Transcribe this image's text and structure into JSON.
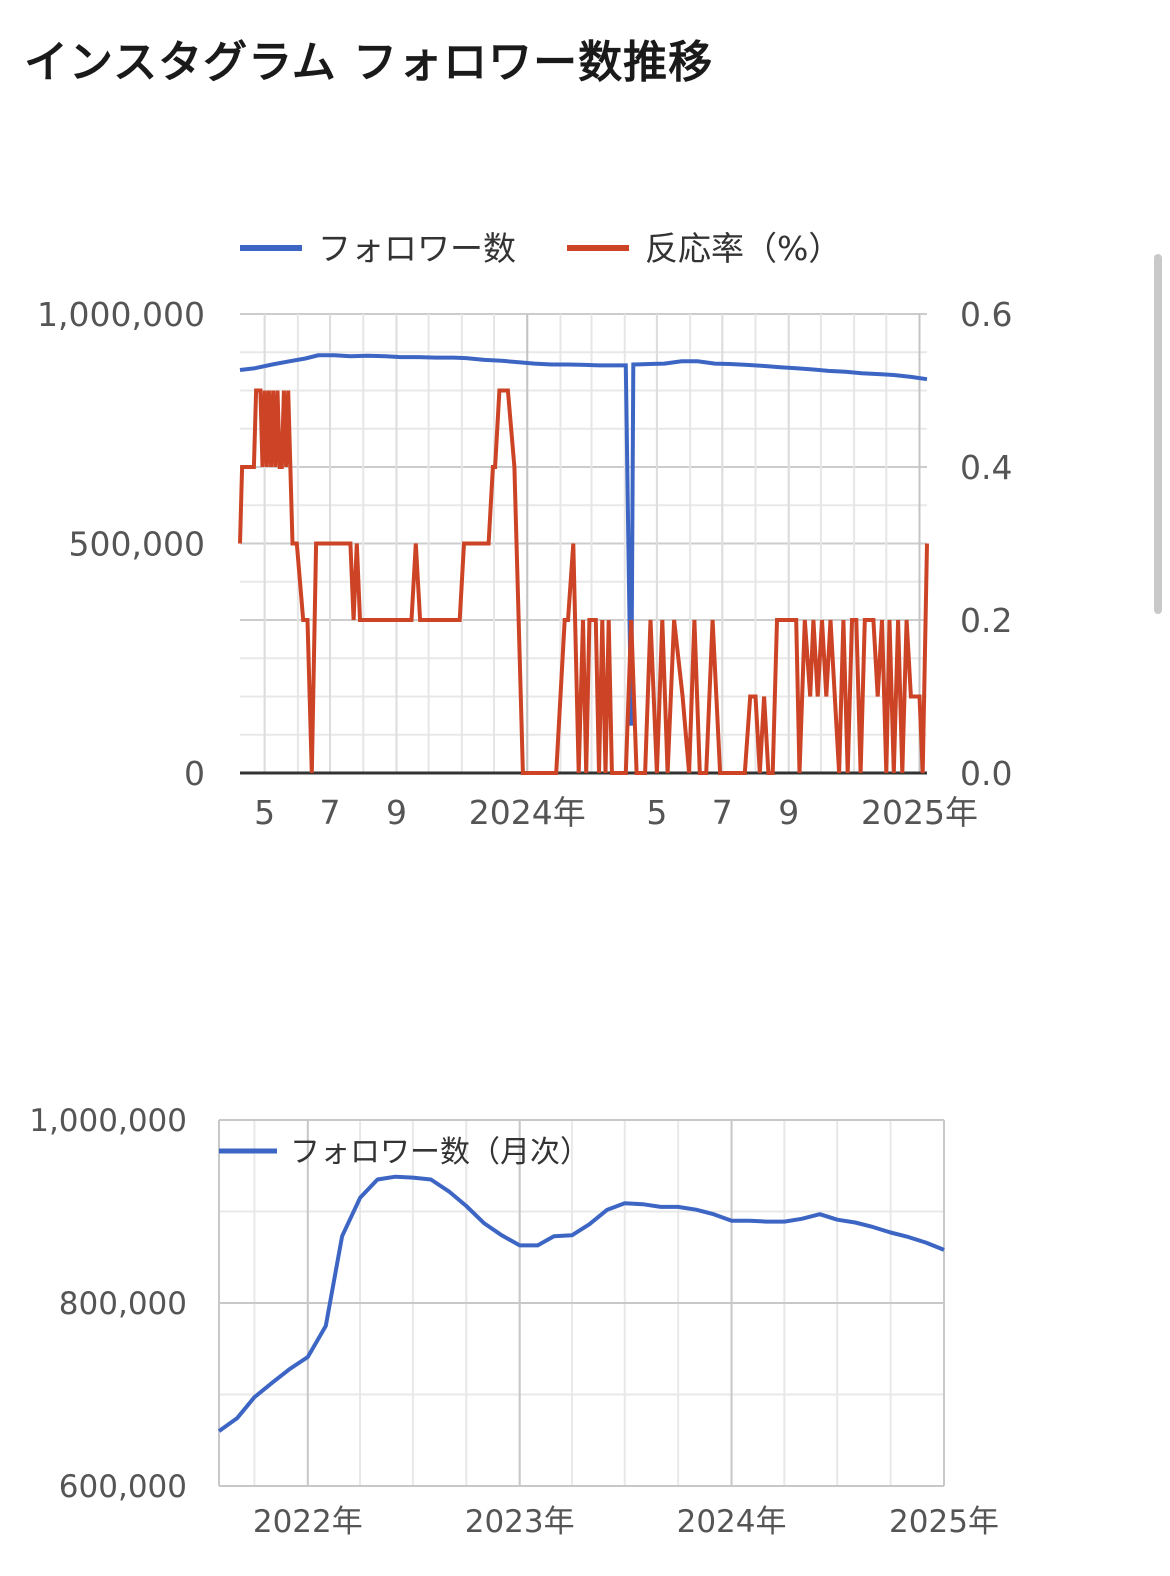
{
  "page": {
    "title": "インスタグラム フォロワー数推移"
  },
  "chart_data": [
    {
      "type": "line",
      "title": "",
      "dual_axis": true,
      "legend": [
        {
          "label": "フォロワー数",
          "color": "#3d66c4"
        },
        {
          "label": "反応率（%）",
          "color": "#cc4425"
        }
      ],
      "legend_position": "top",
      "grid": true,
      "x_tick_labels": [
        "5",
        "7",
        "9",
        "2024年",
        "5",
        "7",
        "9",
        "2025年"
      ],
      "x_tick_dates": [
        "2023-05-01",
        "2023-07-01",
        "2023-09-01",
        "2024-01-01",
        "2024-05-01",
        "2024-07-01",
        "2024-09-01",
        "2025-01-01"
      ],
      "x_range": [
        "2023-04-08",
        "2025-01-08"
      ],
      "y_left": {
        "ylim": [
          0,
          1000000
        ],
        "tick_labels": [
          "0",
          "500,000",
          "1,000,000"
        ]
      },
      "y_right": {
        "ylim": [
          0,
          0.6
        ],
        "tick_labels": [
          "0.0",
          "0.2",
          "0.4",
          "0.6"
        ]
      },
      "series": [
        {
          "name": "フォロワー数",
          "axis": "left",
          "color": "#3d66c4",
          "points": [
            [
              "2023-04-08",
              878000
            ],
            [
              "2023-04-22",
              882000
            ],
            [
              "2023-05-08",
              890000
            ],
            [
              "2023-05-24",
              897000
            ],
            [
              "2023-06-08",
              903000
            ],
            [
              "2023-06-20",
              910000
            ],
            [
              "2023-07-05",
              910000
            ],
            [
              "2023-07-20",
              908000
            ],
            [
              "2023-08-05",
              909000
            ],
            [
              "2023-08-22",
              908000
            ],
            [
              "2023-09-05",
              906000
            ],
            [
              "2023-09-22",
              906000
            ],
            [
              "2023-10-08",
              905000
            ],
            [
              "2023-10-24",
              905000
            ],
            [
              "2023-11-05",
              904000
            ],
            [
              "2023-11-22",
              900000
            ],
            [
              "2023-12-08",
              898000
            ],
            [
              "2023-12-24",
              895000
            ],
            [
              "2024-01-08",
              892000
            ],
            [
              "2024-01-24",
              890000
            ],
            [
              "2024-02-08",
              890000
            ],
            [
              "2024-02-24",
              889000
            ],
            [
              "2024-03-08",
              888000
            ],
            [
              "2024-03-24",
              888000
            ],
            [
              "2024-04-02",
              888000
            ],
            [
              "2024-04-05",
              405000
            ],
            [
              "2024-04-07",
              103000
            ],
            [
              "2024-04-09",
              890000
            ],
            [
              "2024-04-24",
              891000
            ],
            [
              "2024-05-08",
              892000
            ],
            [
              "2024-05-24",
              897000
            ],
            [
              "2024-06-08",
              897000
            ],
            [
              "2024-06-24",
              892000
            ],
            [
              "2024-07-08",
              891000
            ],
            [
              "2024-07-24",
              889000
            ],
            [
              "2024-08-08",
              887000
            ],
            [
              "2024-08-24",
              884000
            ],
            [
              "2024-09-08",
              882000
            ],
            [
              "2024-09-24",
              879000
            ],
            [
              "2024-10-08",
              876000
            ],
            [
              "2024-10-24",
              874000
            ],
            [
              "2024-11-08",
              871000
            ],
            [
              "2024-11-24",
              869000
            ],
            [
              "2024-12-08",
              867000
            ],
            [
              "2024-12-24",
              863000
            ],
            [
              "2025-01-08",
              858000
            ]
          ]
        },
        {
          "name": "反応率（%）",
          "axis": "right",
          "color": "#cc4425",
          "points": [
            [
              "2023-04-08",
              0.3
            ],
            [
              "2023-04-10",
              0.4
            ],
            [
              "2023-04-21",
              0.4
            ],
            [
              "2023-04-23",
              0.5
            ],
            [
              "2023-04-27",
              0.5
            ],
            [
              "2023-04-29",
              0.4
            ],
            [
              "2023-05-01",
              0.5
            ],
            [
              "2023-05-03",
              0.4
            ],
            [
              "2023-05-05",
              0.5
            ],
            [
              "2023-05-07",
              0.4
            ],
            [
              "2023-05-09",
              0.5
            ],
            [
              "2023-05-11",
              0.4
            ],
            [
              "2023-05-13",
              0.5
            ],
            [
              "2023-05-15",
              0.4
            ],
            [
              "2023-05-17",
              0.4
            ],
            [
              "2023-05-19",
              0.5
            ],
            [
              "2023-05-21",
              0.4
            ],
            [
              "2023-05-23",
              0.5
            ],
            [
              "2023-05-27",
              0.3
            ],
            [
              "2023-05-31",
              0.3
            ],
            [
              "2023-06-06",
              0.2
            ],
            [
              "2023-06-10",
              0.2
            ],
            [
              "2023-06-14",
              0.0
            ],
            [
              "2023-06-18",
              0.3
            ],
            [
              "2023-06-26",
              0.3
            ],
            [
              "2023-07-04",
              0.3
            ],
            [
              "2023-07-12",
              0.3
            ],
            [
              "2023-07-20",
              0.3
            ],
            [
              "2023-07-23",
              0.2
            ],
            [
              "2023-07-26",
              0.3
            ],
            [
              "2023-07-29",
              0.2
            ],
            [
              "2023-08-08",
              0.2
            ],
            [
              "2023-08-18",
              0.2
            ],
            [
              "2023-08-28",
              0.2
            ],
            [
              "2023-09-08",
              0.2
            ],
            [
              "2023-09-15",
              0.2
            ],
            [
              "2023-09-19",
              0.3
            ],
            [
              "2023-09-23",
              0.2
            ],
            [
              "2023-10-03",
              0.2
            ],
            [
              "2023-10-13",
              0.2
            ],
            [
              "2023-10-23",
              0.2
            ],
            [
              "2023-10-30",
              0.2
            ],
            [
              "2023-11-03",
              0.3
            ],
            [
              "2023-11-13",
              0.3
            ],
            [
              "2023-11-20",
              0.3
            ],
            [
              "2023-11-26",
              0.3
            ],
            [
              "2023-11-30",
              0.4
            ],
            [
              "2023-12-02",
              0.4
            ],
            [
              "2023-12-06",
              0.5
            ],
            [
              "2023-12-14",
              0.5
            ],
            [
              "2023-12-20",
              0.4
            ],
            [
              "2023-12-28",
              0.0
            ],
            [
              "2024-01-14",
              0.0
            ],
            [
              "2024-01-28",
              0.0
            ],
            [
              "2024-02-05",
              0.2
            ],
            [
              "2024-02-08",
              0.2
            ],
            [
              "2024-02-13",
              0.3
            ],
            [
              "2024-02-18",
              0.0
            ],
            [
              "2024-02-22",
              0.2
            ],
            [
              "2024-02-25",
              0.0
            ],
            [
              "2024-02-28",
              0.2
            ],
            [
              "2024-03-05",
              0.2
            ],
            [
              "2024-03-08",
              0.0
            ],
            [
              "2024-03-11",
              0.2
            ],
            [
              "2024-03-14",
              0.0
            ],
            [
              "2024-03-17",
              0.2
            ],
            [
              "2024-03-20",
              0.0
            ],
            [
              "2024-03-26",
              0.0
            ],
            [
              "2024-04-02",
              0.0
            ],
            [
              "2024-04-07",
              0.2
            ],
            [
              "2024-04-12",
              0.0
            ],
            [
              "2024-04-20",
              0.0
            ],
            [
              "2024-04-25",
              0.2
            ],
            [
              "2024-05-01",
              0.0
            ],
            [
              "2024-05-06",
              0.2
            ],
            [
              "2024-05-11",
              0.0
            ],
            [
              "2024-05-17",
              0.2
            ],
            [
              "2024-05-25",
              0.1
            ],
            [
              "2024-05-31",
              0.0
            ],
            [
              "2024-06-05",
              0.2
            ],
            [
              "2024-06-10",
              0.0
            ],
            [
              "2024-06-16",
              0.0
            ],
            [
              "2024-06-22",
              0.2
            ],
            [
              "2024-06-29",
              0.0
            ],
            [
              "2024-07-08",
              0.0
            ],
            [
              "2024-07-16",
              0.0
            ],
            [
              "2024-07-22",
              0.0
            ],
            [
              "2024-07-27",
              0.1
            ],
            [
              "2024-08-01",
              0.1
            ],
            [
              "2024-08-05",
              0.0
            ],
            [
              "2024-08-09",
              0.1
            ],
            [
              "2024-08-13",
              0.0
            ],
            [
              "2024-08-17",
              0.0
            ],
            [
              "2024-08-21",
              0.2
            ],
            [
              "2024-08-27",
              0.2
            ],
            [
              "2024-09-02",
              0.2
            ],
            [
              "2024-09-08",
              0.2
            ],
            [
              "2024-09-11",
              0.0
            ],
            [
              "2024-09-16",
              0.2
            ],
            [
              "2024-09-21",
              0.1
            ],
            [
              "2024-09-24",
              0.2
            ],
            [
              "2024-09-28",
              0.1
            ],
            [
              "2024-10-02",
              0.2
            ],
            [
              "2024-10-06",
              0.1
            ],
            [
              "2024-10-10",
              0.2
            ],
            [
              "2024-10-14",
              0.1
            ],
            [
              "2024-10-18",
              0.0
            ],
            [
              "2024-10-22",
              0.2
            ],
            [
              "2024-10-26",
              0.0
            ],
            [
              "2024-10-30",
              0.2
            ],
            [
              "2024-11-03",
              0.2
            ],
            [
              "2024-11-07",
              0.0
            ],
            [
              "2024-11-11",
              0.2
            ],
            [
              "2024-11-15",
              0.2
            ],
            [
              "2024-11-19",
              0.2
            ],
            [
              "2024-11-23",
              0.1
            ],
            [
              "2024-11-27",
              0.2
            ],
            [
              "2024-12-01",
              0.0
            ],
            [
              "2024-12-04",
              0.2
            ],
            [
              "2024-12-08",
              0.0
            ],
            [
              "2024-12-12",
              0.2
            ],
            [
              "2024-12-16",
              0.0
            ],
            [
              "2024-12-20",
              0.2
            ],
            [
              "2024-12-24",
              0.1
            ],
            [
              "2024-12-28",
              0.1
            ],
            [
              "2025-01-01",
              0.1
            ],
            [
              "2025-01-04",
              0.0
            ],
            [
              "2025-01-08",
              0.3
            ]
          ]
        }
      ]
    },
    {
      "type": "line",
      "title": "",
      "legend": [
        {
          "label": "フォロワー数（月次）",
          "color": "#3d66c4"
        }
      ],
      "legend_position": "top-left (inside)",
      "grid": true,
      "x_tick_labels": [
        "2022年",
        "2023年",
        "2024年",
        "2025年"
      ],
      "x_tick_dates": [
        "2022-01-01",
        "2023-01-01",
        "2024-01-01",
        "2025-01-01"
      ],
      "x_range": [
        "2021-08-01",
        "2025-01-01"
      ],
      "y": {
        "ylim": [
          600000,
          1000000
        ],
        "tick_labels": [
          "600,000",
          "800,000",
          "1,000,000"
        ]
      },
      "series": [
        {
          "name": "フォロワー数（月次）",
          "color": "#3d66c4",
          "points": [
            [
              "2021-08",
              660000
            ],
            [
              "2021-09",
              674000
            ],
            [
              "2021-10",
              697000
            ],
            [
              "2021-11",
              713000
            ],
            [
              "2021-12",
              728000
            ],
            [
              "2022-01",
              741000
            ],
            [
              "2022-02",
              775000
            ],
            [
              "2022-03",
              873000
            ],
            [
              "2022-04",
              915000
            ],
            [
              "2022-05",
              935000
            ],
            [
              "2022-06",
              938000
            ],
            [
              "2022-07",
              937000
            ],
            [
              "2022-08",
              935000
            ],
            [
              "2022-09",
              922000
            ],
            [
              "2022-10",
              906000
            ],
            [
              "2022-11",
              887000
            ],
            [
              "2022-12",
              874000
            ],
            [
              "2023-01",
              863000
            ],
            [
              "2023-02",
              863000
            ],
            [
              "2023-03",
              873000
            ],
            [
              "2023-04",
              874000
            ],
            [
              "2023-05",
              886000
            ],
            [
              "2023-06",
              902000
            ],
            [
              "2023-07",
              909000
            ],
            [
              "2023-08",
              908000
            ],
            [
              "2023-09",
              905000
            ],
            [
              "2023-10",
              905000
            ],
            [
              "2023-11",
              902000
            ],
            [
              "2023-12",
              897000
            ],
            [
              "2024-01",
              890000
            ],
            [
              "2024-02",
              890000
            ],
            [
              "2024-03",
              889000
            ],
            [
              "2024-04",
              889000
            ],
            [
              "2024-05",
              892000
            ],
            [
              "2024-06",
              897000
            ],
            [
              "2024-07",
              891000
            ],
            [
              "2024-08",
              888000
            ],
            [
              "2024-09",
              883000
            ],
            [
              "2024-10",
              877000
            ],
            [
              "2024-11",
              872000
            ],
            [
              "2024-12",
              866000
            ],
            [
              "2025-01",
              858000
            ]
          ]
        }
      ]
    }
  ]
}
